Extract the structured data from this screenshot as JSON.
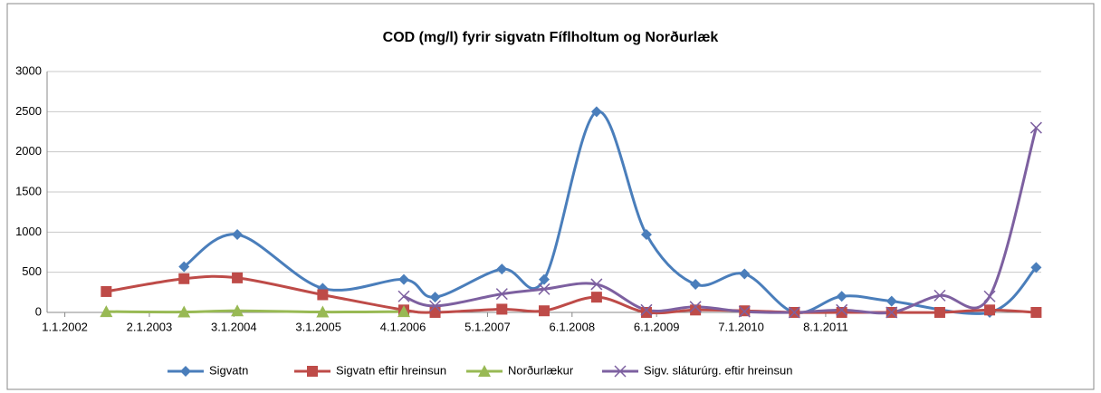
{
  "chart_data": {
    "type": "line",
    "title": "COD (mg/l) fyrir sigvatn Fíflholtum og Norðurlæk",
    "xlim": [
      2001.79,
      2013.55
    ],
    "xticks": [
      {
        "value": 2002,
        "label": "1.1.2002"
      },
      {
        "value": 2003,
        "label": "2.1.2003"
      },
      {
        "value": 2004,
        "label": "3.1.2004"
      },
      {
        "value": 2005,
        "label": "3.1.2005"
      },
      {
        "value": 2006,
        "label": "4.1.2006"
      },
      {
        "value": 2007,
        "label": "5.1.2007"
      },
      {
        "value": 2008,
        "label": "6.1.2008"
      },
      {
        "value": 2009,
        "label": "6.1.2009"
      },
      {
        "value": 2010,
        "label": "7.1.2010"
      },
      {
        "value": 2011,
        "label": "8.1.2011"
      }
    ],
    "ylim": [
      0,
      3000
    ],
    "yticks": [
      0,
      500,
      1000,
      1500,
      2000,
      2500,
      3000
    ],
    "grid": true,
    "smooth": true,
    "legend": "bottom",
    "series": [
      {
        "name": "Sigvatn",
        "color": "#4a7ebb",
        "marker": "diamond",
        "x": [
          2003.41,
          2004.04,
          2005.05,
          2006.01,
          2006.38,
          2007.17,
          2007.67,
          2008.29,
          2008.88,
          2009.46,
          2010.04,
          2010.63,
          2011.19,
          2011.78,
          2012.94,
          2013.49
        ],
        "values": [
          570,
          970,
          300,
          410,
          190,
          540,
          410,
          2500,
          970,
          350,
          480,
          0,
          200,
          140,
          0,
          560
        ]
      },
      {
        "name": "Sigvatn eftir hreinsun",
        "color": "#be4b48",
        "marker": "square",
        "x": [
          2002.49,
          2003.41,
          2004.04,
          2005.05,
          2006.01,
          2006.38,
          2007.17,
          2007.67,
          2008.29,
          2008.88,
          2009.46,
          2010.04,
          2010.63,
          2011.19,
          2011.78,
          2012.35,
          2012.94,
          2013.49
        ],
        "values": [
          260,
          420,
          430,
          220,
          30,
          0,
          40,
          20,
          190,
          0,
          30,
          20,
          0,
          0,
          0,
          0,
          30,
          0
        ]
      },
      {
        "name": "Norðurlækur",
        "color": "#98b954",
        "marker": "triangle",
        "x": [
          2002.49,
          2003.41,
          2004.04,
          2005.05,
          2006.01
        ],
        "values": [
          10,
          5,
          20,
          5,
          10
        ]
      },
      {
        "name": "Sigv. sláturúrg. eftir hreinsun",
        "color": "#7d60a0",
        "marker": "x",
        "x": [
          2006.01,
          2006.38,
          2007.17,
          2007.67,
          2008.29,
          2008.88,
          2009.46,
          2010.04,
          2010.63,
          2011.19,
          2011.78,
          2012.35,
          2012.94,
          2013.49
        ],
        "values": [
          200,
          80,
          230,
          290,
          350,
          30,
          70,
          10,
          0,
          30,
          0,
          210,
          200,
          2300
        ]
      }
    ]
  }
}
